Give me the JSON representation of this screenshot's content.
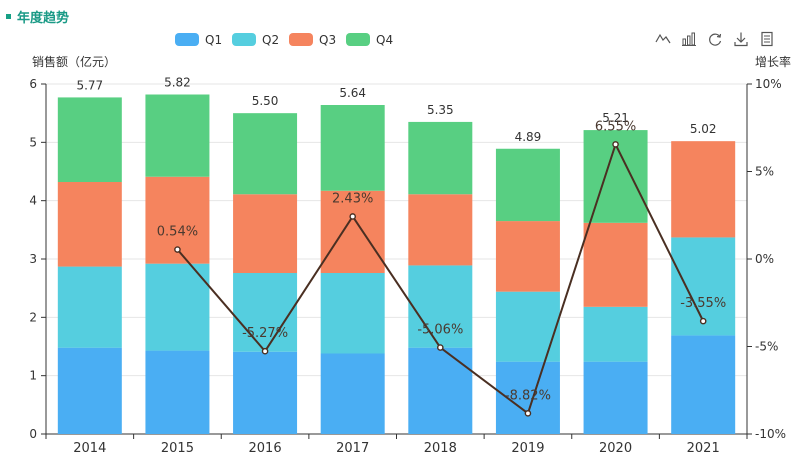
{
  "title": "年度趋势",
  "toolbar": {
    "icons": [
      "line-chart-icon",
      "bar-chart-icon",
      "refresh-icon",
      "download-icon",
      "data-view-icon"
    ]
  },
  "colors": {
    "Q1": "#4aaef3",
    "Q2": "#55cedf",
    "Q3": "#f5845e",
    "Q4": "#58cf82",
    "line": "#4a2f22",
    "accent": "#1a9a86"
  },
  "chart_data": {
    "type": "bar",
    "stacked": true,
    "categories": [
      "2014",
      "2015",
      "2016",
      "2017",
      "2018",
      "2019",
      "2020",
      "2021"
    ],
    "series": [
      {
        "name": "Q1",
        "values": [
          1.48,
          1.43,
          1.41,
          1.38,
          1.48,
          1.24,
          1.24,
          1.69
        ]
      },
      {
        "name": "Q2",
        "values": [
          1.39,
          1.49,
          1.35,
          1.38,
          1.41,
          1.2,
          0.94,
          1.68
        ]
      },
      {
        "name": "Q3",
        "values": [
          1.45,
          1.49,
          1.35,
          1.41,
          1.22,
          1.21,
          1.44,
          1.65
        ]
      },
      {
        "name": "Q4",
        "values": [
          1.45,
          1.41,
          1.39,
          1.47,
          1.24,
          1.24,
          1.59,
          0
        ]
      }
    ],
    "totals": [
      "5.77",
      "5.82",
      "5.50",
      "5.64",
      "5.35",
      "4.89",
      "5.21",
      "5.02"
    ],
    "growth": {
      "name": "增长率",
      "values": [
        null,
        0.54,
        -5.27,
        2.43,
        -5.06,
        -8.82,
        6.55,
        -3.55
      ],
      "labels": [
        "",
        "0.54%",
        "-5.27%",
        "2.43%",
        "-5.06%",
        "-8.82%",
        "6.55%",
        "-3.55%"
      ]
    },
    "ylabel": "销售额（亿元）",
    "y2label": "增长率",
    "ylim": [
      0,
      6
    ],
    "yticks": [
      "0",
      "1",
      "2",
      "3",
      "4",
      "5",
      "6"
    ],
    "y2lim": [
      -10,
      10
    ],
    "y2ticks": [
      "-10%",
      "-5%",
      "0%",
      "5%",
      "10%"
    ],
    "legend": [
      "Q1",
      "Q2",
      "Q3",
      "Q4"
    ],
    "legend_position": "top-center"
  }
}
